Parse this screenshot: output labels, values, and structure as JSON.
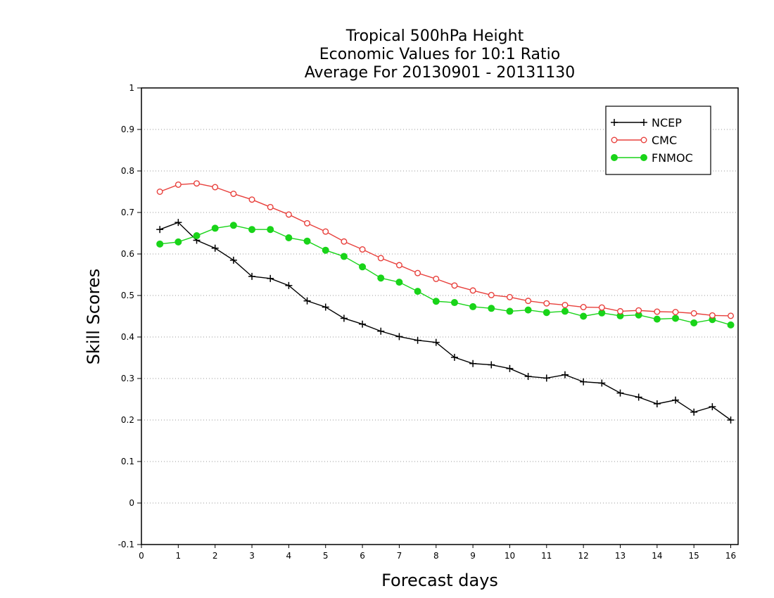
{
  "chart_data": {
    "type": "line",
    "title_lines": [
      "Tropical 500hPa Height",
      "Economic Values for 10:1 Ratio",
      "Average For 20130901 - 20131130"
    ],
    "xlabel": "Forecast days",
    "ylabel": "Skill Scores",
    "xlim": [
      0,
      16.2
    ],
    "ylim": [
      -0.1,
      1
    ],
    "xticks": [
      0,
      1,
      2,
      3,
      4,
      5,
      6,
      7,
      8,
      9,
      10,
      11,
      12,
      13,
      14,
      15,
      16
    ],
    "yticks": [
      -0.1,
      0,
      0.1,
      0.2,
      0.3,
      0.4,
      0.5,
      0.6,
      0.7,
      0.8,
      0.9,
      1
    ],
    "ytick_labels": [
      "-0.1",
      "0",
      "0.1",
      "0.2",
      "0.3",
      "0.4",
      "0.5",
      "0.6",
      "0.7",
      "0.8",
      "0.9",
      "1"
    ],
    "grid": "horizontal dotted",
    "legend_position": "top-right",
    "x": [
      0.5,
      1.0,
      1.5,
      2.0,
      2.5,
      3.0,
      3.5,
      4.0,
      4.5,
      5.0,
      5.5,
      6.0,
      6.5,
      7.0,
      7.5,
      8.0,
      8.5,
      9.0,
      9.5,
      10.0,
      10.5,
      11.0,
      11.5,
      12.0,
      12.5,
      13.0,
      13.5,
      14.0,
      14.5,
      15.0,
      15.5,
      16.0
    ],
    "series": [
      {
        "name": "NCEP",
        "color": "#000000",
        "marker": "plus",
        "values": [
          0.659,
          0.676,
          0.633,
          0.614,
          0.585,
          0.546,
          0.541,
          0.524,
          0.487,
          0.472,
          0.445,
          0.431,
          0.414,
          0.401,
          0.392,
          0.387,
          0.351,
          0.336,
          0.333,
          0.324,
          0.305,
          0.301,
          0.309,
          0.292,
          0.289,
          0.265,
          0.255,
          0.239,
          0.248,
          0.219,
          0.232,
          0.2
        ]
      },
      {
        "name": "CMC",
        "color": "#e8403c",
        "marker": "open-circle",
        "values": [
          0.75,
          0.767,
          0.77,
          0.761,
          0.745,
          0.731,
          0.713,
          0.695,
          0.674,
          0.654,
          0.63,
          0.611,
          0.59,
          0.573,
          0.554,
          0.54,
          0.524,
          0.512,
          0.501,
          0.496,
          0.487,
          0.481,
          0.477,
          0.472,
          0.471,
          0.462,
          0.464,
          0.461,
          0.46,
          0.457,
          0.452,
          0.451
        ]
      },
      {
        "name": "FNMOC",
        "color": "#19d419",
        "marker": "filled-circle",
        "values": [
          0.624,
          0.629,
          0.644,
          0.662,
          0.669,
          0.659,
          0.659,
          0.639,
          0.631,
          0.609,
          0.594,
          0.569,
          0.542,
          0.532,
          0.51,
          0.486,
          0.483,
          0.473,
          0.469,
          0.462,
          0.465,
          0.459,
          0.462,
          0.45,
          0.458,
          0.451,
          0.453,
          0.443,
          0.445,
          0.434,
          0.442,
          0.429
        ]
      }
    ]
  }
}
